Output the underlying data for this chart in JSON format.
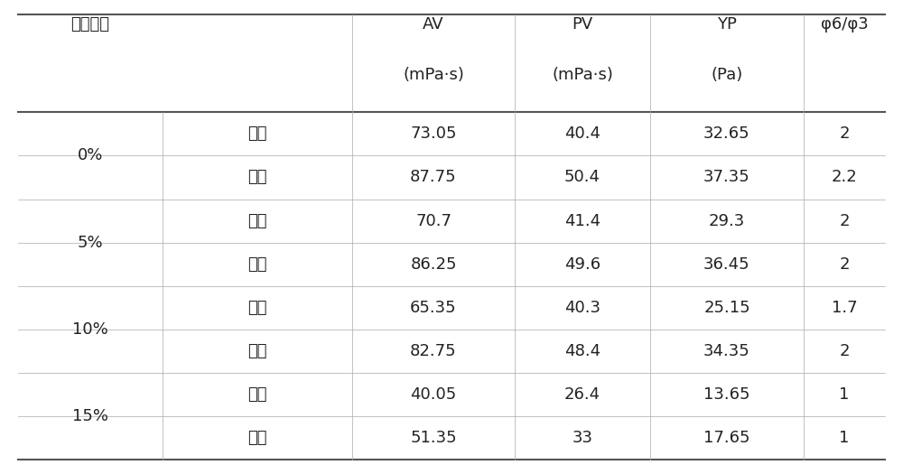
{
  "col_headers": [
    {
      "text": "清水加量",
      "line2": ""
    },
    {
      "text": "",
      "line2": ""
    },
    {
      "text": "AV\n(mPa·s)",
      "line2": ""
    },
    {
      "text": "PV\n(mPa·s)",
      "line2": ""
    },
    {
      "text": "YP\n(Pa)",
      "line2": ""
    },
    {
      "text": "φ6/φ3",
      "line2": ""
    }
  ],
  "col1_header": "清水加量",
  "col2_header": "",
  "col3_header": "AV",
  "col3_unit": "(mPa·s)",
  "col4_header": "PV",
  "col4_unit": "(mPa·s)",
  "col5_header": "YP",
  "col5_unit": "(Pa)",
  "col6_header": "φ6/φ3",
  "groups": [
    {
      "label": "0%",
      "rows": [
        {
          "sub": "滚前",
          "AV": "73.05",
          "PV": "40.4",
          "YP": "32.65",
          "phi": "2"
        },
        {
          "sub": "滚后",
          "AV": "87.75",
          "PV": "50.4",
          "YP": "37.35",
          "phi": "2.2"
        }
      ]
    },
    {
      "label": "5%",
      "rows": [
        {
          "sub": "滚前",
          "AV": "70.7",
          "PV": "41.4",
          "YP": "29.3",
          "phi": "2"
        },
        {
          "sub": "滚后",
          "AV": "86.25",
          "PV": "49.6",
          "YP": "36.45",
          "phi": "2"
        }
      ]
    },
    {
      "label": "10%",
      "rows": [
        {
          "sub": "滚前",
          "AV": "65.35",
          "PV": "40.3",
          "YP": "25.15",
          "phi": "1.7"
        },
        {
          "sub": "滚后",
          "AV": "82.75",
          "PV": "48.4",
          "YP": "34.35",
          "phi": "2"
        }
      ]
    },
    {
      "label": "15%",
      "rows": [
        {
          "sub": "滚前",
          "AV": "40.05",
          "PV": "26.4",
          "YP": "13.65",
          "phi": "1"
        },
        {
          "sub": "滚后",
          "AV": "51.35",
          "PV": "33",
          "YP": "17.65",
          "phi": "1"
        }
      ]
    }
  ],
  "bg_color": "#ffffff",
  "text_color": "#222222",
  "line_color": "#aaaaaa",
  "thick_line_color": "#555555",
  "font_size": 13,
  "header_font_size": 13
}
